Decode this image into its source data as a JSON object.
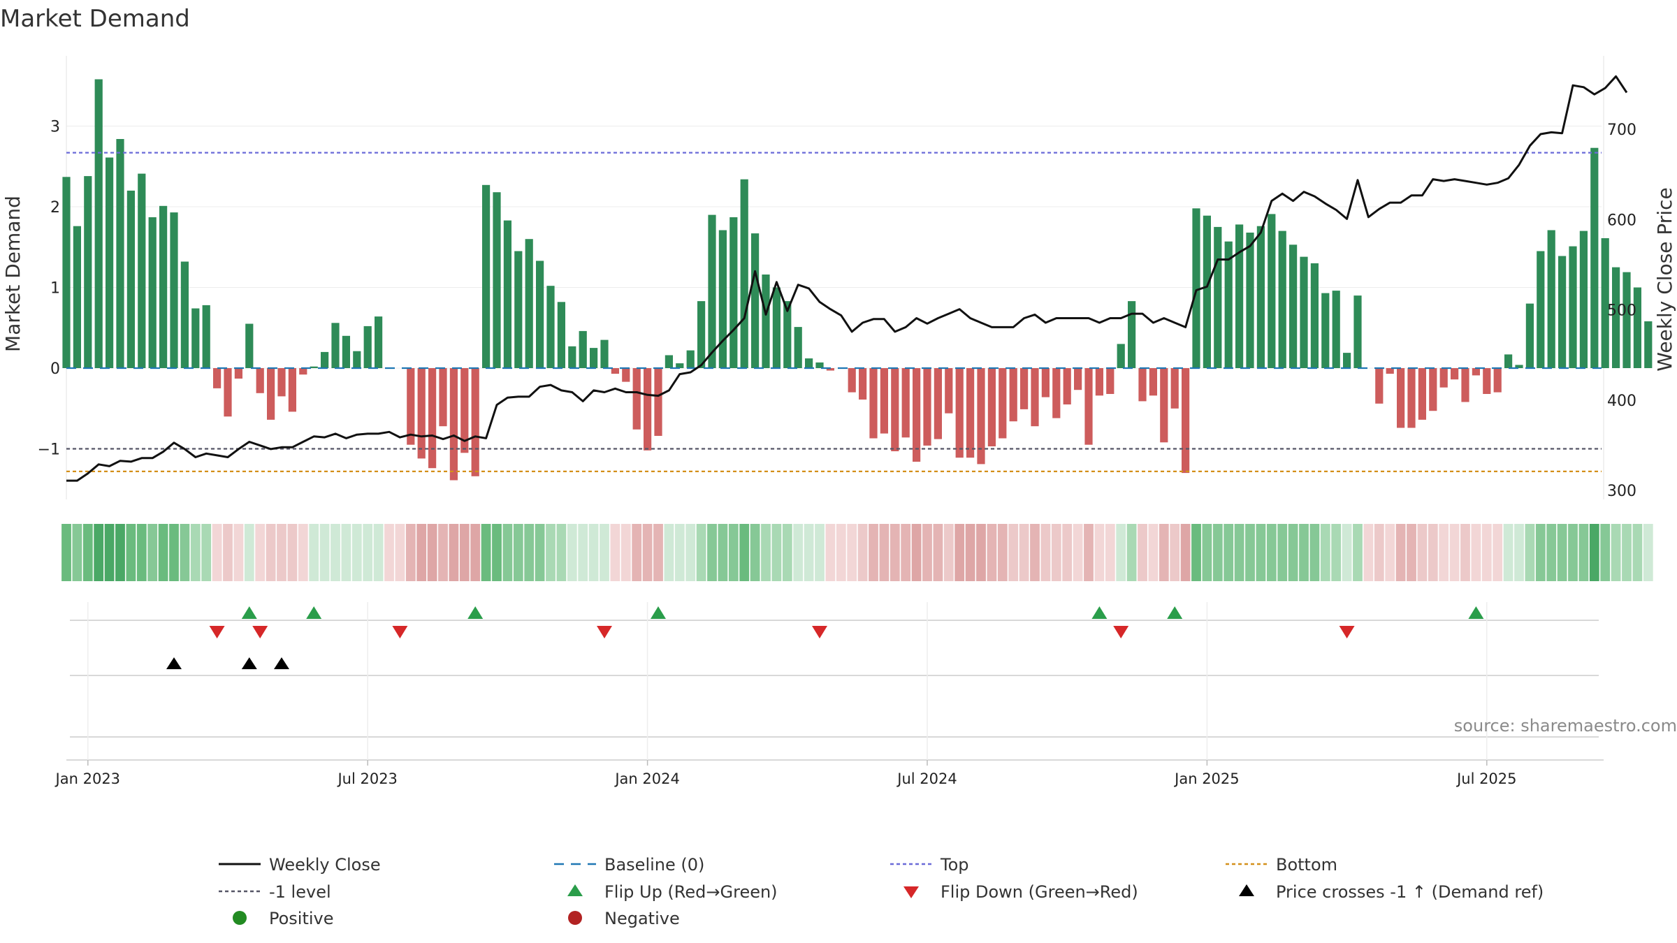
{
  "chart_data": {
    "type": "bar",
    "title": "Market Demand",
    "ylabel_left": "Market Demand",
    "ylabel_right": "Weekly Close Price",
    "ylim_left": [
      -1.55,
      3.75
    ],
    "ylim_right": [
      290,
      750
    ],
    "left_ticks": [
      {
        "v": 3,
        "label": "3"
      },
      {
        "v": 2,
        "label": "2"
      },
      {
        "v": 1,
        "label": "1"
      },
      {
        "v": 0,
        "label": "0"
      },
      {
        "v": -1,
        "label": "−1"
      }
    ],
    "right_ticks": [
      {
        "v": 700,
        "label": "700"
      },
      {
        "v": 600,
        "label": "600"
      },
      {
        "v": 500,
        "label": "500"
      },
      {
        "v": 400,
        "label": "400"
      },
      {
        "v": 300,
        "label": "300"
      }
    ],
    "x_ticks": [
      {
        "i": 2,
        "label": "Jan 2023"
      },
      {
        "i": 28,
        "label": "Jul 2023"
      },
      {
        "i": 54,
        "label": "Jan 2024"
      },
      {
        "i": 80,
        "label": "Jul 2024"
      },
      {
        "i": 106,
        "label": "Jan 2025"
      },
      {
        "i": 132,
        "label": "Jul 2025"
      }
    ],
    "reference_lines": {
      "top": 2.67,
      "minus_one_level": -1.0,
      "bottom": -1.28,
      "baseline": 0
    },
    "series_demand": [
      2.37,
      1.76,
      2.38,
      3.58,
      2.61,
      2.84,
      2.2,
      2.41,
      1.87,
      2.01,
      1.93,
      1.32,
      0.74,
      0.78,
      -0.25,
      -0.6,
      -0.13,
      0.55,
      -0.31,
      -0.64,
      -0.35,
      -0.54,
      -0.08,
      0.02,
      0.2,
      0.56,
      0.4,
      0.21,
      0.52,
      0.64,
      0.0,
      0.0,
      -0.95,
      -1.12,
      -1.24,
      -0.72,
      -1.39,
      -1.05,
      -1.34,
      2.27,
      2.18,
      1.83,
      1.45,
      1.6,
      1.33,
      1.02,
      0.82,
      0.27,
      0.46,
      0.25,
      0.35,
      -0.07,
      -0.17,
      -0.76,
      -1.02,
      -0.84,
      0.16,
      0.06,
      0.22,
      0.83,
      1.9,
      1.71,
      1.87,
      2.34,
      1.67,
      1.16,
      1.0,
      0.83,
      0.51,
      0.12,
      0.07,
      -0.03,
      0.0,
      -0.3,
      -0.39,
      -0.87,
      -0.81,
      -1.03,
      -0.86,
      -1.16,
      -0.96,
      -0.88,
      -0.56,
      -1.11,
      -1.11,
      -1.19,
      -0.97,
      -0.87,
      -0.66,
      -0.51,
      -0.72,
      -0.36,
      -0.62,
      -0.45,
      -0.27,
      -0.95,
      -0.34,
      -0.32,
      0.3,
      0.83,
      -0.41,
      -0.34,
      -0.92,
      -0.5,
      -1.3,
      1.98,
      1.89,
      1.75,
      1.57,
      1.78,
      1.68,
      1.76,
      1.91,
      1.7,
      1.53,
      1.38,
      1.3,
      0.93,
      0.96,
      0.19,
      0.9,
      0.0,
      -0.44,
      -0.07,
      -0.74,
      -0.74,
      -0.64,
      -0.53,
      -0.24,
      -0.14,
      -0.42,
      -0.09,
      -0.32,
      -0.3,
      0.17,
      0.04,
      0.8,
      1.45,
      1.71,
      1.39,
      1.51,
      1.7,
      2.73,
      1.61,
      1.25,
      1.19,
      1.0,
      0.58
    ],
    "series_weekly_close": [
      310,
      310,
      318,
      328,
      326,
      332,
      331,
      335,
      335,
      342,
      352,
      345,
      336,
      340,
      338,
      336,
      345,
      353,
      349,
      345,
      347,
      347,
      353,
      359,
      358,
      362,
      357,
      361,
      362,
      362,
      364,
      358,
      361,
      359,
      360,
      356,
      360,
      354,
      359,
      357,
      394,
      402,
      403,
      403,
      414,
      416,
      410,
      408,
      398,
      410,
      408,
      412,
      408,
      408,
      405,
      404,
      410,
      428,
      430,
      438,
      452,
      465,
      477,
      490,
      542,
      494,
      530,
      498,
      527,
      523,
      508,
      500,
      493,
      475,
      485,
      489,
      489,
      475,
      480,
      490,
      484,
      490,
      495,
      500,
      490,
      485,
      480,
      480,
      480,
      490,
      494,
      485,
      490,
      490,
      490,
      490,
      485,
      490,
      490,
      495,
      495,
      485,
      490,
      485,
      480,
      521,
      525,
      555,
      555,
      563,
      570,
      585,
      620,
      628,
      620,
      630,
      625,
      617,
      610,
      600,
      643,
      602,
      611,
      618,
      618,
      626,
      626,
      644,
      642,
      644,
      642,
      640,
      638,
      640,
      645,
      660,
      681,
      694,
      696,
      695,
      748,
      746,
      738,
      745,
      758,
      740
    ],
    "flip_up_weeks": [
      17,
      23,
      38,
      55,
      96,
      103,
      131
    ],
    "flip_down_weeks": [
      14,
      18,
      31,
      50,
      70,
      98,
      119
    ],
    "price_cross_weeks": [
      10,
      17,
      20
    ],
    "legend": [
      {
        "key": "weekly-close",
        "label": "Weekly Close"
      },
      {
        "key": "baseline",
        "label": "Baseline (0)"
      },
      {
        "key": "top",
        "label": "Top"
      },
      {
        "key": "bottom",
        "label": "Bottom"
      },
      {
        "key": "minus-one",
        "label": "-1 level"
      },
      {
        "key": "flip-up",
        "label": "Flip Up (Red→Green)"
      },
      {
        "key": "flip-down",
        "label": "Flip Down (Green→Red)"
      },
      {
        "key": "price-cross",
        "label": "Price crosses -1 ↑ (Demand ref)"
      },
      {
        "key": "positive",
        "label": "Positive"
      },
      {
        "key": "negative",
        "label": "Negative"
      }
    ],
    "source": "source: sharemaestro.com"
  },
  "colors": {
    "positive_bar": "#2e8b57",
    "negative_bar": "#cd5c5c",
    "price_line": "#111111",
    "baseline": "#1f77b4",
    "top_line": "#6a6ad8",
    "bottom_line": "#d4901a",
    "minus_one_line": "#555566",
    "flip_up": "#2a9d4a",
    "flip_down": "#d62728",
    "price_cross": "#000000",
    "positive_dot": "#228b22",
    "negative_dot": "#b22222"
  }
}
